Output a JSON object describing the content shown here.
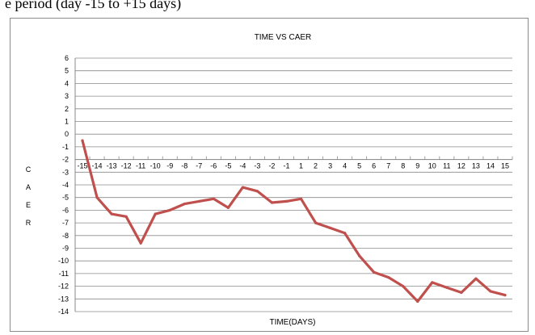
{
  "caption": "e period (day -15 to +15 days)",
  "chart_data": {
    "type": "line",
    "title": "TIME VS CAER",
    "xlabel": "TIME(DAYS)",
    "ylabel": "CAER",
    "ylim": [
      -14,
      6
    ],
    "yticks": [
      6,
      5,
      4,
      3,
      2,
      1,
      0,
      -1,
      -2,
      -3,
      -4,
      -5,
      -6,
      -7,
      -8,
      -9,
      -10,
      -11,
      -12,
      -13,
      -14
    ],
    "x": [
      -15,
      -14,
      -13,
      -12,
      -11,
      -10,
      -9,
      -8,
      -7,
      -6,
      -5,
      -4,
      -3,
      -2,
      -1,
      1,
      2,
      3,
      4,
      5,
      6,
      7,
      8,
      9,
      10,
      11,
      12,
      13,
      14,
      15
    ],
    "series": [
      {
        "values": [
          -0.5,
          -5.0,
          -6.3,
          -6.5,
          -8.6,
          -6.3,
          -6.0,
          -5.5,
          -5.3,
          -5.1,
          -5.8,
          -4.2,
          -4.5,
          -5.4,
          -5.3,
          -5.1,
          -7.0,
          -7.4,
          -7.8,
          -9.6,
          -10.9,
          -11.3,
          -12.0,
          -13.2,
          -11.7,
          -12.1,
          -12.5,
          -11.4,
          -12.4,
          -12.7
        ],
        "color": "#c0504d"
      }
    ],
    "grid": true,
    "x_axis_position": "y=-2",
    "legend": "none"
  }
}
